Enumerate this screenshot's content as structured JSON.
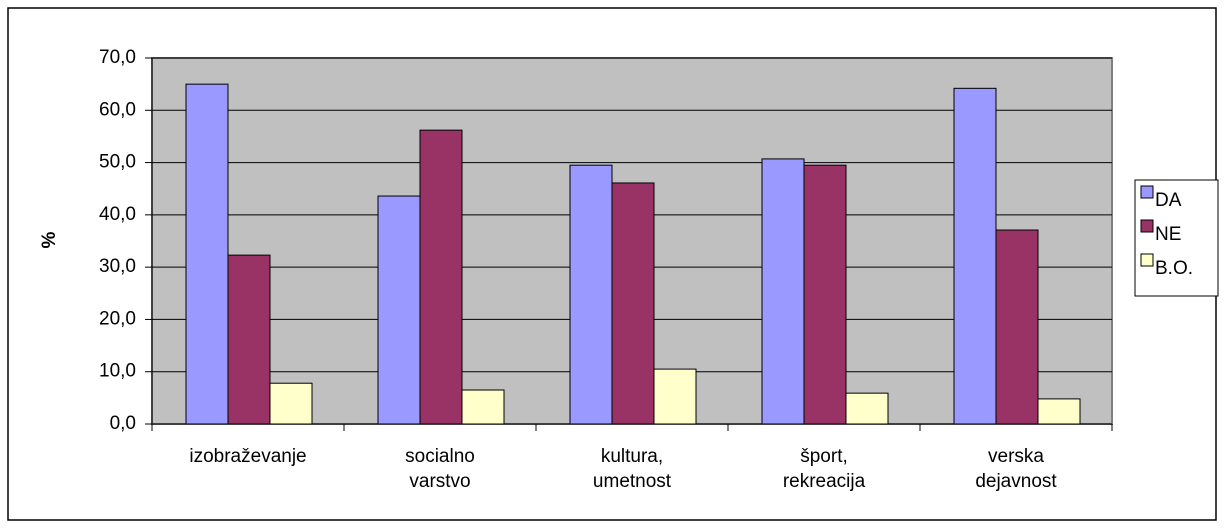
{
  "chart_data": {
    "type": "bar",
    "y_label": "%",
    "categories": [
      "izobraževanje",
      "socialno varstvo",
      "kultura, umetnost",
      "šport, rekreacija",
      "verska dejavnost"
    ],
    "series": [
      {
        "name": "DA",
        "color": "#9999ff",
        "values": [
          65.0,
          43.6,
          49.5,
          50.7,
          64.2
        ]
      },
      {
        "name": "NE",
        "color": "#993366",
        "values": [
          32.3,
          56.2,
          46.1,
          49.5,
          37.1
        ]
      },
      {
        "name": "B.O.",
        "color": "#ffffcc",
        "values": [
          7.8,
          6.5,
          10.5,
          5.9,
          4.8
        ]
      }
    ],
    "ylim": [
      0,
      70
    ],
    "yticks": [
      {
        "value": 0,
        "label": "0,0"
      },
      {
        "value": 10,
        "label": "10,0"
      },
      {
        "value": 20,
        "label": "20,0"
      },
      {
        "value": 30,
        "label": "30,0"
      },
      {
        "value": 40,
        "label": "40,0"
      },
      {
        "value": 50,
        "label": "50,0"
      },
      {
        "value": 60,
        "label": "60,0"
      },
      {
        "value": 70,
        "label": "70,0"
      }
    ],
    "grid": true,
    "legend": "right"
  }
}
